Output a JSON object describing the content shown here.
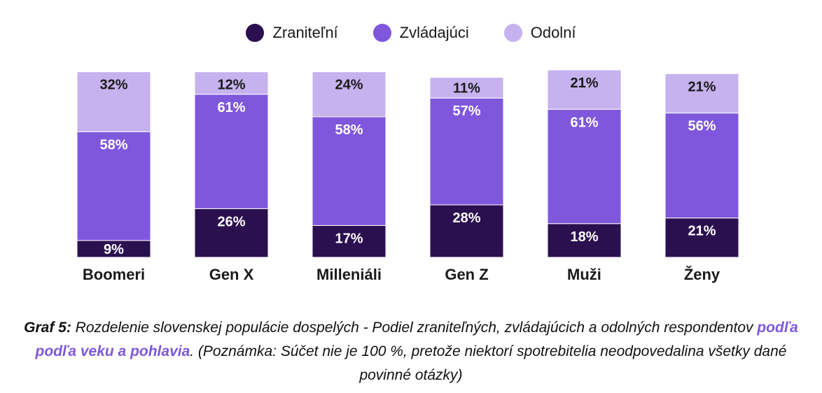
{
  "chart_data": {
    "type": "bar",
    "stacked": true,
    "categories": [
      "Boomeri",
      "Gen X",
      "Milleniáli",
      "Gen Z",
      "Muži",
      "Ženy"
    ],
    "series": [
      {
        "name": "Zraniteľní",
        "color": "#2b1050",
        "values": [
          9,
          26,
          17,
          28,
          18,
          21
        ]
      },
      {
        "name": "Zvládajúci",
        "color": "#7f57dc",
        "values": [
          58,
          61,
          58,
          57,
          61,
          56
        ]
      },
      {
        "name": "Odolní",
        "color": "#c5b2ee",
        "values": [
          32,
          12,
          24,
          11,
          21,
          21
        ]
      }
    ],
    "legend_position": "top-center",
    "grid": false,
    "ylim": [
      0,
      100
    ]
  },
  "caption": {
    "label": "Graf 5:",
    "text1": " Rozdelenie slovenskej populácie dospelých - Podiel zraniteľných, zvládajúcich a odolných respondentov ",
    "highlight": "podľa podľa veku a pohlavia",
    "text2": ". (Poznámka: Súčet nie je 100 %, pretože niektorí spotrebitelia neodpovedalina všetky dané povinné otázky)"
  }
}
